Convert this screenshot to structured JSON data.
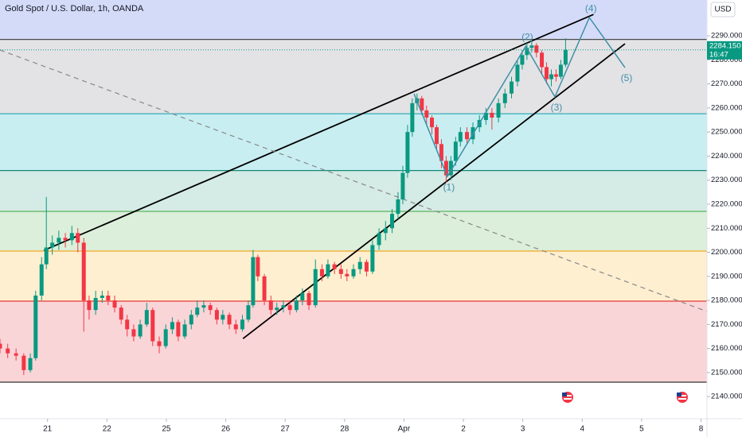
{
  "chart_data": {
    "type": "candlestick",
    "title": "Gold Spot / U.S. Dollar, 1h, OANDA",
    "currency": "USD",
    "up_color": "#089981",
    "down_color": "#f23645",
    "xlim": [
      -0.8,
      11.1
    ],
    "xticks": [
      {
        "value": 0,
        "label": "21"
      },
      {
        "value": 1,
        "label": "22"
      },
      {
        "value": 2,
        "label": "25"
      },
      {
        "value": 3,
        "label": "26"
      },
      {
        "value": 4,
        "label": "27"
      },
      {
        "value": 5,
        "label": "28"
      },
      {
        "value": 6,
        "label": "Apr"
      },
      {
        "value": 7,
        "label": "2"
      },
      {
        "value": 8,
        "label": "3"
      },
      {
        "value": 9,
        "label": "4"
      },
      {
        "value": 10,
        "label": "5"
      },
      {
        "value": 11,
        "label": "8"
      }
    ],
    "ylim": [
      2130.8,
      2304.9
    ],
    "yticks": [
      {
        "value": 2140,
        "label": "2140.000"
      },
      {
        "value": 2150,
        "label": "2150.000"
      },
      {
        "value": 2160,
        "label": "2160.000"
      },
      {
        "value": 2170,
        "label": "2170.000"
      },
      {
        "value": 2180,
        "label": "2180.000"
      },
      {
        "value": 2190,
        "label": "2190.000"
      },
      {
        "value": 2200,
        "label": "2200.000"
      },
      {
        "value": 2210,
        "label": "2210.000"
      },
      {
        "value": 2220,
        "label": "2220.000"
      },
      {
        "value": 2230,
        "label": "2230.000"
      },
      {
        "value": 2240,
        "label": "2240.000"
      },
      {
        "value": 2250,
        "label": "2250.000"
      },
      {
        "value": 2260,
        "label": "2260.000"
      },
      {
        "value": 2270,
        "label": "2270.000"
      },
      {
        "value": 2280,
        "label": "2280.000"
      },
      {
        "value": 2290,
        "label": "2290.000"
      }
    ],
    "x": [
      -0.8,
      -0.67,
      -0.53,
      -0.4,
      -0.29,
      -0.2,
      -0.1,
      -0.02,
      0.08,
      0.19,
      0.3,
      0.41,
      0.51,
      0.61,
      0.7,
      0.81,
      0.92,
      1.02,
      1.13,
      1.24,
      1.34,
      1.45,
      1.56,
      1.67,
      1.77,
      1.88,
      1.99,
      2.1,
      2.2,
      2.31,
      2.42,
      2.52,
      2.63,
      2.74,
      2.85,
      2.95,
      3.06,
      3.17,
      3.28,
      3.38,
      3.46,
      3.54,
      3.65,
      3.76,
      3.86,
      3.97,
      4.08,
      4.19,
      4.29,
      4.4,
      4.51,
      4.62,
      4.72,
      4.83,
      4.94,
      5.04,
      5.15,
      5.26,
      5.37,
      5.47,
      5.58,
      5.69,
      5.8,
      5.9,
      5.98,
      6.06,
      6.14,
      6.22,
      6.3,
      6.38,
      6.47,
      6.55,
      6.63,
      6.71,
      6.79,
      6.87,
      6.95,
      7.06,
      7.16,
      7.27,
      7.38,
      7.48,
      7.59,
      7.7,
      7.81,
      7.91,
      7.99,
      8.07,
      8.15,
      8.23,
      8.32,
      8.4,
      8.48,
      8.56,
      8.64,
      8.72
    ],
    "open": [
      2162,
      2160,
      2158,
      2157,
      2151,
      2156,
      2182,
      2195,
      2202,
      2204,
      2206,
      2205,
      2208,
      2204,
      2180,
      2176,
      2181,
      2182,
      2180,
      2177,
      2172,
      2168,
      2165,
      2170,
      2176,
      2163,
      2161,
      2168,
      2171,
      2165,
      2170,
      2174,
      2177,
      2178,
      2176,
      2172,
      2174,
      2170,
      2168,
      2172,
      2178,
      2198,
      2190,
      2180,
      2176,
      2177,
      2178,
      2176,
      2180,
      2183,
      2178,
      2193,
      2190,
      2195,
      2193,
      2191,
      2190,
      2193,
      2196,
      2192,
      2203,
      2208,
      2210,
      2216,
      2222,
      2233,
      2250,
      2262,
      2264,
      2259,
      2256,
      2252,
      2245,
      2238,
      2232,
      2238,
      2246,
      2250,
      2247,
      2252,
      2255,
      2258,
      2256,
      2262,
      2266,
      2271,
      2278,
      2282,
      2285,
      2286,
      2283,
      2277,
      2272,
      2274,
      2273,
      2278
    ],
    "high": [
      2164,
      2162,
      2160,
      2158,
      2158,
      2184,
      2198,
      2223,
      2207,
      2209,
      2208,
      2211,
      2210,
      2206,
      2182,
      2184,
      2184,
      2184,
      2182,
      2178,
      2174,
      2170,
      2172,
      2179,
      2177,
      2165,
      2170,
      2173,
      2172,
      2172,
      2176,
      2180,
      2180,
      2179,
      2177,
      2176,
      2175,
      2172,
      2174,
      2180,
      2201,
      2199,
      2191,
      2182,
      2179,
      2180,
      2180,
      2182,
      2185,
      2184,
      2197,
      2195,
      2197,
      2196,
      2195,
      2193,
      2195,
      2198,
      2197,
      2205,
      2210,
      2213,
      2218,
      2225,
      2236,
      2253,
      2264,
      2266,
      2265,
      2261,
      2257,
      2253,
      2247,
      2240,
      2240,
      2248,
      2252,
      2252,
      2254,
      2257,
      2260,
      2260,
      2264,
      2268,
      2273,
      2280,
      2284,
      2287,
      2288,
      2287,
      2284,
      2279,
      2276,
      2276,
      2280,
      2289
    ],
    "low": [
      2158,
      2156,
      2155,
      2149,
      2150,
      2155,
      2180,
      2193,
      2199,
      2201,
      2202,
      2203,
      2200,
      2167,
      2172,
      2174,
      2179,
      2178,
      2175,
      2170,
      2165,
      2163,
      2164,
      2169,
      2161,
      2158,
      2160,
      2166,
      2163,
      2164,
      2168,
      2173,
      2175,
      2174,
      2170,
      2170,
      2168,
      2166,
      2167,
      2171,
      2177,
      2188,
      2178,
      2174,
      2174,
      2175,
      2174,
      2175,
      2178,
      2176,
      2177,
      2188,
      2189,
      2191,
      2189,
      2188,
      2189,
      2191,
      2190,
      2191,
      2201,
      2205,
      2208,
      2214,
      2220,
      2231,
      2248,
      2259,
      2257,
      2253,
      2249,
      2243,
      2235,
      2229,
      2230,
      2236,
      2244,
      2245,
      2245,
      2250,
      2253,
      2251,
      2254,
      2260,
      2264,
      2269,
      2276,
      2280,
      2283,
      2281,
      2274,
      2270,
      2269,
      2271,
      2272,
      2277
    ],
    "close": [
      2160,
      2158,
      2157,
      2151,
      2156,
      2182,
      2195,
      2202,
      2204,
      2206,
      2205,
      2208,
      2204,
      2180,
      2176,
      2181,
      2182,
      2180,
      2177,
      2172,
      2168,
      2165,
      2170,
      2176,
      2163,
      2161,
      2168,
      2171,
      2165,
      2170,
      2174,
      2177,
      2178,
      2176,
      2172,
      2174,
      2170,
      2168,
      2172,
      2178,
      2198,
      2190,
      2180,
      2176,
      2177,
      2178,
      2176,
      2180,
      2183,
      2178,
      2193,
      2190,
      2195,
      2193,
      2191,
      2190,
      2193,
      2196,
      2192,
      2203,
      2208,
      2210,
      2216,
      2222,
      2233,
      2250,
      2262,
      2264,
      2259,
      2256,
      2252,
      2245,
      2238,
      2232,
      2238,
      2246,
      2250,
      2247,
      2252,
      2255,
      2258,
      2256,
      2262,
      2266,
      2271,
      2278,
      2282,
      2285,
      2286,
      2283,
      2277,
      2272,
      2274,
      2273,
      2278,
      2284.15
    ],
    "last_price": {
      "value": 2284.15,
      "label": "2284.150"
    },
    "countdown": "16:47",
    "levels": [
      {
        "price": 2288.5,
        "line": "#4a4a4a",
        "fill_above": "#d4dbf8"
      },
      {
        "price": 2257.6,
        "line": "#22a7b5",
        "fill_above": "#e3e3e5"
      },
      {
        "price": 2234,
        "line": "#138a78",
        "fill_above": "#c9eef1"
      },
      {
        "price": 2217,
        "line": "#4caf50",
        "fill_above": "#d5ebe5"
      },
      {
        "price": 2200.5,
        "line": "#f5a623",
        "fill_above": "#dcefda"
      },
      {
        "price": 2179.7,
        "line": "#e53935",
        "fill_above": "#fdefd0"
      },
      {
        "price": 2146,
        "line": "#333333",
        "fill_above": "#fad5d8"
      }
    ],
    "trendlines": [
      {
        "x": [
          -0.06,
          9.19
        ],
        "y": [
          2200.8,
          2298.9
        ],
        "color": "#000000",
        "dashed": false
      },
      {
        "x": [
          3.29,
          9.72
        ],
        "y": [
          2164.1,
          2286.7
        ],
        "color": "#000000",
        "dashed": false
      },
      {
        "x": [
          -0.8,
          11.1
        ],
        "y": [
          2284.1,
          2175.4
        ],
        "color": "#888888",
        "dashed": true
      }
    ],
    "wave": {
      "x": [
        6.17,
        6.73,
        8.05,
        8.54,
        9.12,
        9.72
      ],
      "y": [
        2265.9,
        2231.5,
        2285.7,
        2264.6,
        2297.6,
        2276.8
      ],
      "color": "#3f8fa8",
      "labels": [
        "(1)",
        "(2)",
        "(3)",
        "(4)",
        "(5)"
      ]
    }
  }
}
